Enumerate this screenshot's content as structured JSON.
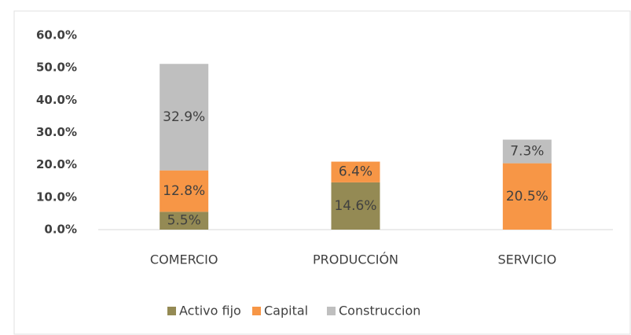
{
  "chart_data": {
    "type": "stacked_bar",
    "categories": [
      "COMERCIO",
      "PRODUCCIÓN",
      "SERVICIO"
    ],
    "series": [
      {
        "name": "Activo fijo",
        "color": "#948a54",
        "values": [
          5.5,
          14.6,
          null
        ],
        "value_labels": [
          "5.5%",
          "14.6%",
          null
        ]
      },
      {
        "name": "Capital",
        "color": "#f79646",
        "values": [
          12.8,
          6.4,
          20.5
        ],
        "value_labels": [
          "12.8%",
          "6.4%",
          "20.5%"
        ]
      },
      {
        "name": "Construccion",
        "color": "#bfbfbf",
        "values": [
          32.9,
          null,
          7.3
        ],
        "value_labels": [
          "32.9%",
          null,
          "7.3%"
        ]
      }
    ],
    "ylim": [
      0,
      60
    ],
    "yticks": [
      {
        "value": 0,
        "label": "0.0%"
      },
      {
        "value": 10,
        "label": "10.0%"
      },
      {
        "value": 20,
        "label": "20.0%"
      },
      {
        "value": 30,
        "label": "30.0%"
      },
      {
        "value": 40,
        "label": "40.0%"
      },
      {
        "value": 50,
        "label": "50.0%"
      },
      {
        "value": 60,
        "label": "60.0%"
      }
    ],
    "grid": false,
    "legend": "bottom"
  }
}
